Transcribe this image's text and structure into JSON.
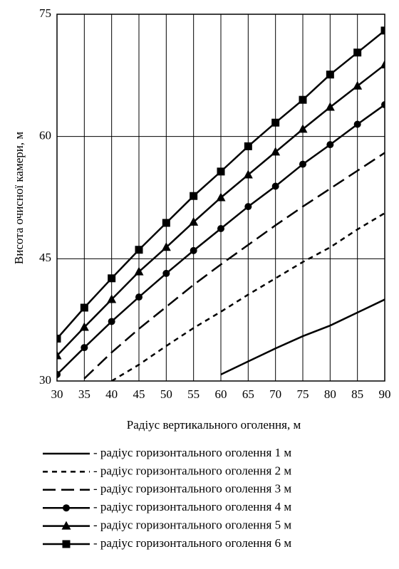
{
  "chart_data": {
    "type": "line",
    "x_label": "Радіус вертикального оголення, м",
    "y_label": "Висота очисної камери, м",
    "x": [
      30,
      35,
      40,
      45,
      50,
      55,
      60,
      65,
      70,
      75,
      80,
      85,
      90
    ],
    "xlim": [
      30,
      90
    ],
    "xticks": [
      30,
      35,
      40,
      45,
      50,
      55,
      60,
      65,
      70,
      75,
      80,
      85,
      90
    ],
    "ylim": [
      30,
      75
    ],
    "yticks": [
      30,
      45,
      60,
      75
    ],
    "grid": true,
    "series": [
      {
        "name": "- радіус горизонтального оголення 1 м",
        "color": "#000000",
        "dash": "solid",
        "marker": "none",
        "values": [
          null,
          null,
          null,
          null,
          null,
          null,
          30.8,
          32.4,
          34.0,
          35.5,
          36.8,
          38.4,
          40.0
        ]
      },
      {
        "name": "- радіус горизонтального оголення 2 м",
        "color": "#000000",
        "dash": "short",
        "marker": "none",
        "values": [
          null,
          null,
          30.0,
          32.0,
          34.3,
          36.5,
          38.5,
          40.6,
          42.6,
          44.6,
          46.4,
          48.6,
          50.6
        ]
      },
      {
        "name": "- радіус горизонтального оголення 3 м",
        "color": "#000000",
        "dash": "long",
        "marker": "none",
        "values": [
          null,
          30.3,
          33.5,
          36.4,
          39.1,
          41.8,
          44.3,
          46.7,
          49.1,
          51.4,
          53.6,
          55.8,
          58.0
        ]
      },
      {
        "name": "- радіус горизонтального оголення 4 м",
        "color": "#000000",
        "dash": "solid",
        "marker": "circle",
        "values": [
          30.8,
          34.1,
          37.3,
          40.3,
          43.2,
          46.0,
          48.7,
          51.4,
          53.9,
          56.6,
          59.0,
          61.5,
          63.9
        ]
      },
      {
        "name": "- радіус горизонтального оголення 5 м",
        "color": "#000000",
        "dash": "solid",
        "marker": "triangle",
        "values": [
          33.1,
          36.6,
          40.0,
          43.4,
          46.4,
          49.5,
          52.5,
          55.3,
          58.1,
          60.9,
          63.6,
          66.2,
          68.8
        ]
      },
      {
        "name": "- радіус горизонтального оголення 6 м",
        "color": "#000000",
        "dash": "solid",
        "marker": "square",
        "values": [
          35.2,
          39.0,
          42.6,
          46.1,
          49.4,
          52.7,
          55.7,
          58.8,
          61.7,
          64.5,
          67.6,
          70.3,
          73.0
        ]
      }
    ]
  }
}
